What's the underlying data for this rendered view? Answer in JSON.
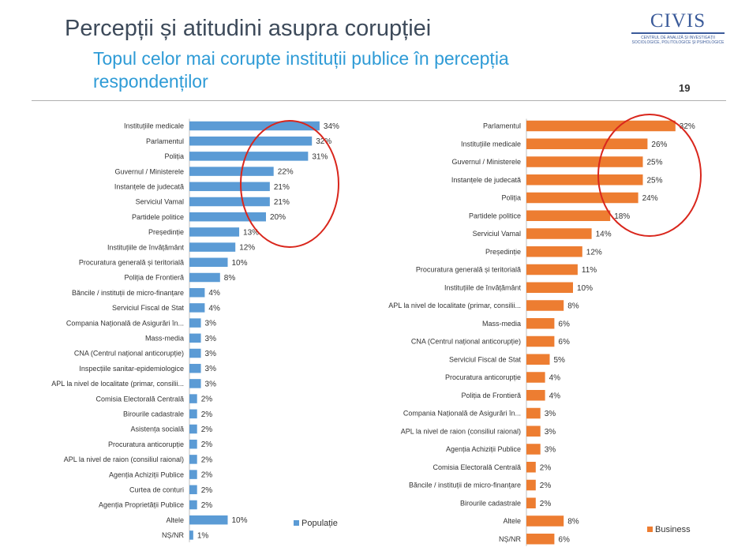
{
  "header": {
    "title": "Percepții și atitudini asupra corupției",
    "subtitle": "Topul celor mai corupte instituții publice în percepția respondenților",
    "page_number": "19"
  },
  "logo": {
    "text": "CIVIS",
    "subtext": "CENTRUL DE ANALIZĂ ȘI INVESTIGAȚII SOCIOLOGICE, POLITOLOGICE ȘI PSIHOLOGICE"
  },
  "colors": {
    "populatie": "#5b9bd5",
    "business": "#ed7d31",
    "highlight_circle": "#d9261c"
  },
  "chart_data": [
    {
      "type": "bar",
      "orientation": "horizontal",
      "legend_position": "bottom-right",
      "series": [
        {
          "name": "Populație",
          "categories": [
            "Instituțiile medicale",
            "Parlamentul",
            "Poliția",
            "Guvernul / Ministerele",
            "Instanțele de judecată",
            "Serviciul Vamal",
            "Partidele politice",
            "Președinție",
            "Instituțiile de învățământ",
            "Procuratura generală și teritorială",
            "Poliția de Frontieră",
            "Băncile / instituții de micro-finanțare",
            "Serviciul Fiscal de Stat",
            "Compania Națională de Asigurări în...",
            "Mass-media",
            "CNA (Centrul național anticorupție)",
            "Inspecțiile sanitar-epidemiologice",
            "APL la nivel de localitate (primar, consilii...",
            "Comisia Electorală Centrală",
            "Birourile cadastrale",
            "Asistența socială",
            "Procuratura anticorupție",
            "APL la nivel de raion (consiliul raional)",
            "Agenția Achiziții Publice",
            "Curtea de conturi",
            "Agenția Proprietății Publice",
            "Altele",
            "NȘ/NR"
          ],
          "values": [
            34,
            32,
            31,
            22,
            21,
            21,
            20,
            13,
            12,
            10,
            8,
            4,
            4,
            3,
            3,
            3,
            3,
            3,
            2,
            2,
            2,
            2,
            2,
            2,
            2,
            2,
            10,
            1
          ]
        }
      ]
    },
    {
      "type": "bar",
      "orientation": "horizontal",
      "legend_position": "bottom-right",
      "series": [
        {
          "name": "Business",
          "categories": [
            "Parlamentul",
            "Instituțiile medicale",
            "Guvernul / Ministerele",
            "Instanțele de judecată",
            "Poliția",
            "Partidele politice",
            "Serviciul Vamal",
            "Președinție",
            "Procuratura generală și teritorială",
            "Instituțiile de învățământ",
            "APL la nivel de localitate (primar, consilii...",
            "Mass-media",
            "CNA (Centrul național anticorupție)",
            "Serviciul Fiscal de Stat",
            "Procuratura anticorupție",
            "Poliția de Frontieră",
            "Compania Națională de Asigurări în...",
            "APL la nivel de raion (consiliul raional)",
            "Agenția Achiziții Publice",
            "Comisia Electorală Centrală",
            "Băncile / instituții de micro-finanțare",
            "Birourile cadastrale",
            "Altele",
            "NȘ/NR"
          ],
          "values": [
            32,
            26,
            25,
            25,
            24,
            18,
            14,
            12,
            11,
            10,
            8,
            6,
            6,
            5,
            4,
            4,
            3,
            3,
            3,
            2,
            2,
            2,
            8,
            6
          ]
        }
      ]
    }
  ]
}
